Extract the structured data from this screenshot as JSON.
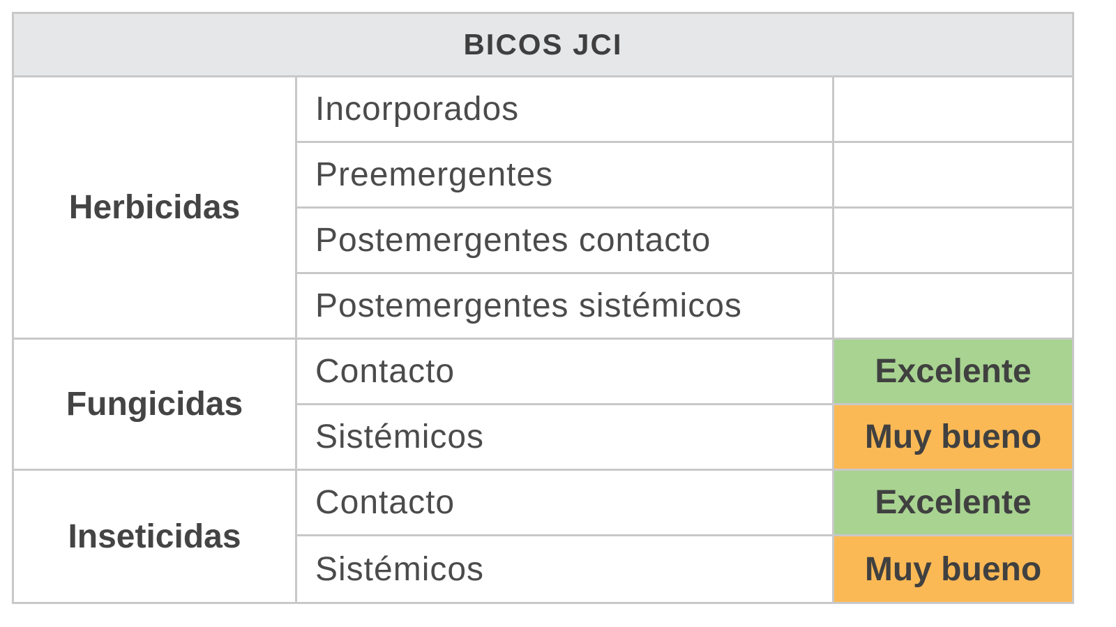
{
  "table": {
    "title": "BICOS JCI",
    "groups": [
      {
        "label": "Herbicidas",
        "rows": [
          {
            "item": "Incorporados",
            "rating": ""
          },
          {
            "item": "Preemergentes",
            "rating": ""
          },
          {
            "item": "Postemergentes contacto",
            "rating": ""
          },
          {
            "item": "Postemergentes sistémicos",
            "rating": ""
          }
        ]
      },
      {
        "label": "Fungicidas",
        "rows": [
          {
            "item": "Contacto",
            "rating": "Excelente"
          },
          {
            "item": "Sistémicos",
            "rating": "Muy bueno"
          }
        ]
      },
      {
        "label": "Inseticidas",
        "rows": [
          {
            "item": "Contacto",
            "rating": "Excelente"
          },
          {
            "item": "Sistémicos",
            "rating": "Muy bueno"
          }
        ]
      }
    ]
  },
  "colors": {
    "header_bg": "#e6e7e9",
    "border": "#c8c8c8",
    "excelente": "#a8d391",
    "muy_bueno": "#fbb955"
  }
}
